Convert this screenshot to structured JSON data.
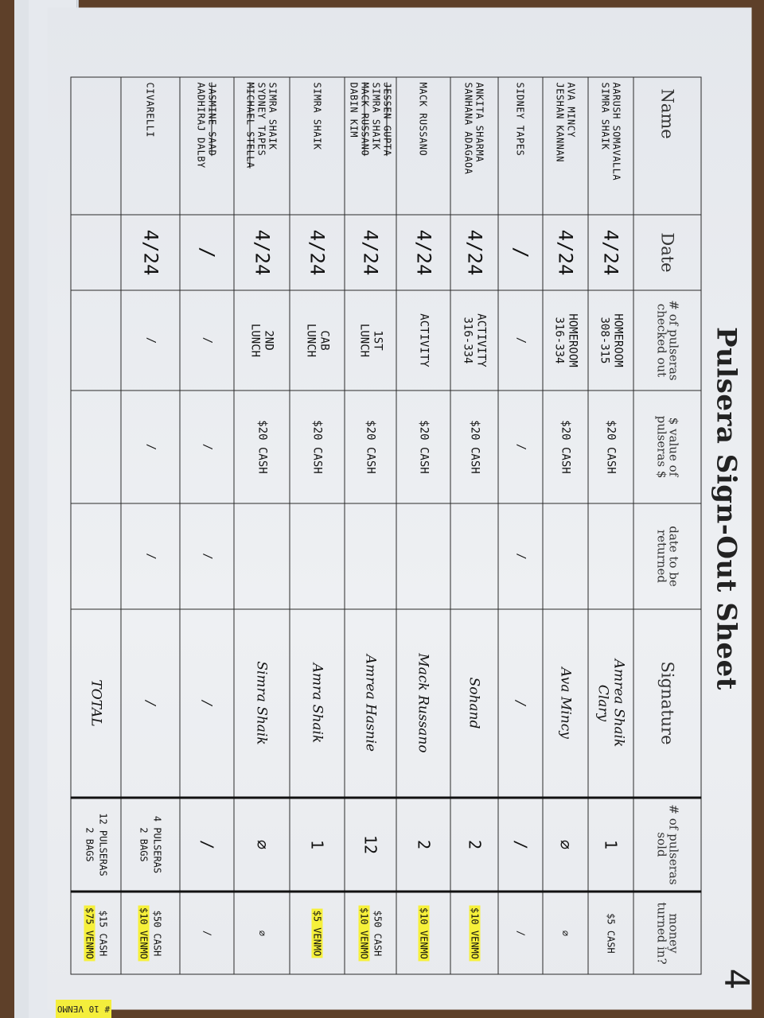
{
  "sheet": {
    "title": "Pulsera Sign-Out Sheet",
    "page_number": "4",
    "headers": {
      "name": "Name",
      "date": "Date",
      "checked_out": "# of pulseras checked out",
      "value": "$ value of pulseras $",
      "date_returned": "date to be returned",
      "signature": "Signature",
      "sold": "# of pulseras sold",
      "money": "money turned in?"
    },
    "highlight_color": "#f6f03a",
    "rows": [
      {
        "names": [
          {
            "t": "Aarush Somavalla"
          },
          {
            "t": "Simra Shaik"
          }
        ],
        "date": "4/24",
        "checked": [
          "Homeroom",
          "308-315"
        ],
        "value": "$20 CASH",
        "returned": "",
        "signature": [
          "Amrea Shaik",
          "Clary"
        ],
        "sold": [
          "1"
        ],
        "money": [
          {
            "t": "$5 CASH"
          }
        ]
      },
      {
        "names": [
          {
            "t": "Ava Mincy"
          },
          {
            "t": "Jeshan Kannan"
          }
        ],
        "date": "4/24",
        "checked": [
          "Homeroom",
          "316-334"
        ],
        "value": "$20 CASH",
        "returned": "",
        "signature": [
          "Ava Mincy"
        ],
        "sold": [
          "∅"
        ],
        "money": [
          {
            "t": "∅"
          }
        ]
      },
      {
        "names": [
          {
            "t": "Sidney Tapes"
          }
        ],
        "date": "/",
        "checked": [
          "/"
        ],
        "value": "/",
        "returned": "/",
        "signature": [
          "/"
        ],
        "sold": [
          "/"
        ],
        "money": [
          {
            "t": "/"
          }
        ]
      },
      {
        "names": [
          {
            "t": "Ankita Sharma"
          },
          {
            "t": "Sanhana Adagaoa"
          }
        ],
        "date": "4/24",
        "checked": [
          "Activity",
          "316-334"
        ],
        "value": "$20 CASH",
        "returned": "",
        "signature": [
          "Sohand"
        ],
        "sold": [
          "2"
        ],
        "money": [
          {
            "t": "$10 VENMO",
            "hl": true
          }
        ]
      },
      {
        "names": [
          {
            "t": "Mack Russano"
          }
        ],
        "date": "4/24",
        "checked": [
          "Activity"
        ],
        "value": "$20 CASH",
        "returned": "",
        "signature": [
          "Mack Russano"
        ],
        "sold": [
          "2"
        ],
        "money": [
          {
            "t": "$10 VENMO",
            "hl": true
          }
        ]
      },
      {
        "names": [
          {
            "t": "Jessen Gupta",
            "strike": true
          },
          {
            "t": "Simra Shaik"
          },
          {
            "t": "Mack Russano",
            "strike": true
          },
          {
            "t": "Dabin Kim"
          }
        ],
        "date": "4/24",
        "checked": [
          "1st",
          "Lunch"
        ],
        "value": "$20 CASH",
        "returned": "",
        "signature": [
          "Amrea Hasnie"
        ],
        "sold": [
          "12"
        ],
        "money": [
          {
            "t": "$50 CASH"
          },
          {
            "t": "$10 VENMO",
            "hl": true
          }
        ]
      },
      {
        "names": [
          {
            "t": "Simra Shaik"
          }
        ],
        "date": "4/24",
        "checked": [
          "Cab",
          "Lunch"
        ],
        "value": "$20 CASH",
        "returned": "",
        "signature": [
          "Amra Shaik"
        ],
        "sold": [
          "1"
        ],
        "money": [
          {
            "t": "$5 VENMO",
            "hl": true
          }
        ]
      },
      {
        "names": [
          {
            "t": "Simra Shaik"
          },
          {
            "t": "Sydney Tapes"
          },
          {
            "t": "Michael Stella",
            "strike": true
          }
        ],
        "date": "4/24",
        "checked": [
          "2nd",
          "Lunch"
        ],
        "value": "$20 CASH",
        "returned": "",
        "signature": [
          "Simra Shaik"
        ],
        "sold": [
          "∅"
        ],
        "money": [
          {
            "t": "∅"
          }
        ]
      },
      {
        "names": [
          {
            "t": "Jasmine Saad",
            "strike": true
          },
          {
            "t": "Aadhiraj Dalby"
          }
        ],
        "date": "/",
        "checked": [
          "/"
        ],
        "value": "/",
        "returned": "/",
        "signature": [
          "/"
        ],
        "sold": [
          "/"
        ],
        "money": [
          {
            "t": "/"
          }
        ]
      },
      {
        "names": [
          {
            "t": "Civarelli"
          }
        ],
        "date": "4/24",
        "checked": [
          "/"
        ],
        "value": "/",
        "returned": "/",
        "signature": [
          "/"
        ],
        "sold": [
          "4 pulseras",
          "2 bags"
        ],
        "money": [
          {
            "t": "$50 CASH"
          },
          {
            "t": "$10 VENMO",
            "hl": true
          }
        ]
      },
      {
        "names": [],
        "date": "",
        "checked": [],
        "value": "",
        "returned": "",
        "signature": [
          "TOTAL"
        ],
        "sold": [
          "12 pulseras",
          "2 bags"
        ],
        "money": [
          {
            "t": "$15 CASH"
          },
          {
            "t": "$75 VENMO",
            "hl": true
          }
        ]
      }
    ]
  },
  "sticky_note": "# 10 VENMO"
}
